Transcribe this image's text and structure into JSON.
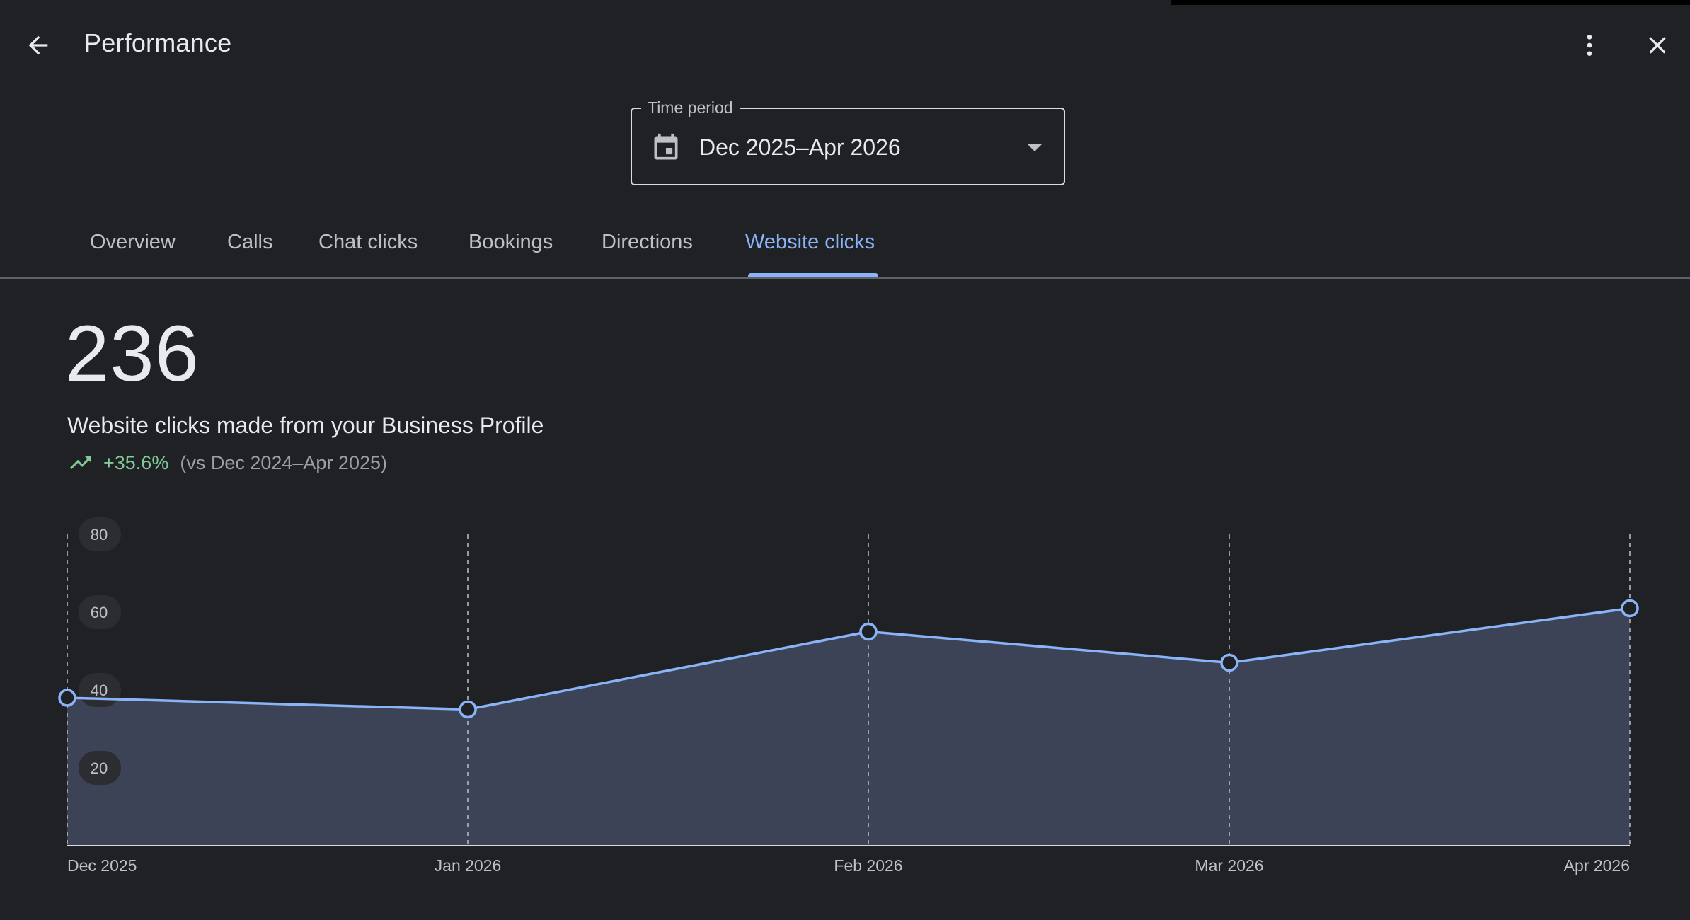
{
  "header": {
    "title": "Performance",
    "back_icon": "arrow-back-icon",
    "more_icon": "more-vert-icon",
    "close_icon": "close-icon"
  },
  "time_period": {
    "label": "Time period",
    "value": "Dec 2025–Apr 2026",
    "icon": "calendar-icon"
  },
  "tabs": [
    {
      "label": "Overview",
      "active": false
    },
    {
      "label": "Calls",
      "active": false
    },
    {
      "label": "Chat clicks",
      "active": false
    },
    {
      "label": "Bookings",
      "active": false
    },
    {
      "label": "Directions",
      "active": false
    },
    {
      "label": "Website clicks",
      "active": true
    }
  ],
  "summary": {
    "total": "236",
    "description": "Website clicks made from your Business Profile",
    "change": "+35.6%",
    "comparison": "(vs Dec 2024–Apr 2025)",
    "trend_icon": "trending-up-icon"
  },
  "colors": {
    "background": "#202124",
    "accent": "#8ab4f8",
    "positive": "#81c995",
    "area_fill": "#3c4356"
  },
  "chart_data": {
    "type": "area",
    "categories": [
      "Dec 2025",
      "Jan 2026",
      "Feb 2026",
      "Mar 2026",
      "Apr 2026"
    ],
    "values": [
      38,
      35,
      55,
      47,
      61
    ],
    "ylim": [
      0,
      80
    ],
    "yticks": [
      "80",
      "60",
      "40",
      "20"
    ],
    "grid": "vertical dashed at each month",
    "xlabel": "",
    "ylabel": ""
  }
}
